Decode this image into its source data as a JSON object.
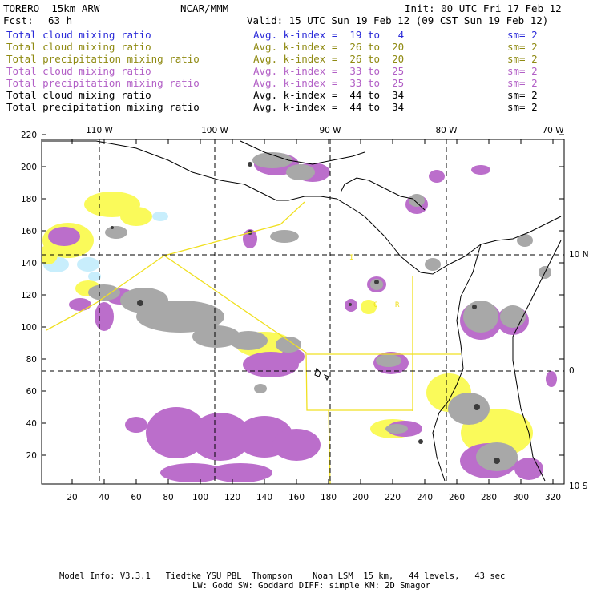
{
  "header": {
    "model": "TORERO  15km ARW",
    "org": "NCAR/MMM",
    "init": "Init: 00 UTC Fri 17 Feb 12",
    "fcst_label": "Fcst:",
    "fcst_value": "63 h",
    "valid": "Valid: 15 UTC Sun 19 Feb 12 (09 CST Sun 19 Feb 12)"
  },
  "legend_rows": [
    {
      "field": "Total cloud mixing ratio",
      "kindex": "Avg. k-index =  19 to   4",
      "sm": "sm= 2",
      "color": "#2a2ad8"
    },
    {
      "field": "Total cloud mixing ratio",
      "kindex": "Avg. k-index =  26 to  20",
      "sm": "sm= 2",
      "color": "#8f8a12"
    },
    {
      "field": "Total precipitation mixing ratio",
      "kindex": "Avg. k-index =  26 to  20",
      "sm": "sm= 2",
      "color": "#8f8a12"
    },
    {
      "field": "Total cloud mixing ratio",
      "kindex": "Avg. k-index =  33 to  25",
      "sm": "sm= 2",
      "color": "#b25fc6"
    },
    {
      "field": "Total precipitation mixing ratio",
      "kindex": "Avg. k-index =  33 to  25",
      "sm": "sm= 2",
      "color": "#b25fc6"
    },
    {
      "field": "Total cloud mixing ratio",
      "kindex": "Avg. k-index =  44 to  34",
      "sm": "sm= 2",
      "color": "#000000"
    },
    {
      "field": "Total precipitation mixing ratio",
      "kindex": "Avg. k-index =  44 to  34",
      "sm": "sm= 2",
      "color": "#000000"
    }
  ],
  "longitude_labels": [
    "110 W",
    "100 W",
    "90 W",
    "80 W",
    "70 W"
  ],
  "latitude_labels": [
    "10 N",
    "0",
    "10 S"
  ],
  "grid_x_ticks": [
    "20",
    "40",
    "60",
    "80",
    "100",
    "120",
    "140",
    "160",
    "180",
    "200",
    "220",
    "240",
    "260",
    "280",
    "300",
    "320"
  ],
  "grid_y_ticks": [
    "20",
    "40",
    "60",
    "80",
    "100",
    "120",
    "140",
    "160",
    "180",
    "200",
    "220"
  ],
  "map_labels": {
    "country_a": "C",
    "country_b": "R",
    "country_c": "I"
  },
  "colors": {
    "light_blue": "#c8eefc",
    "yellow": "#fafa5a",
    "purple": "#bb6ecb",
    "gray": "#a8a8a8",
    "dark_gray": "#3c3c3c",
    "domain_line": "#f0e020"
  },
  "footer": {
    "line1": "Model Info: V3.3.1   Tiedtke YSU PBL  Thompson    Noah LSM  15 km,   44 levels,   43 sec",
    "line2": "LW: Godd SW: Goddard DIFF: simple KM: 2D Smagor"
  }
}
